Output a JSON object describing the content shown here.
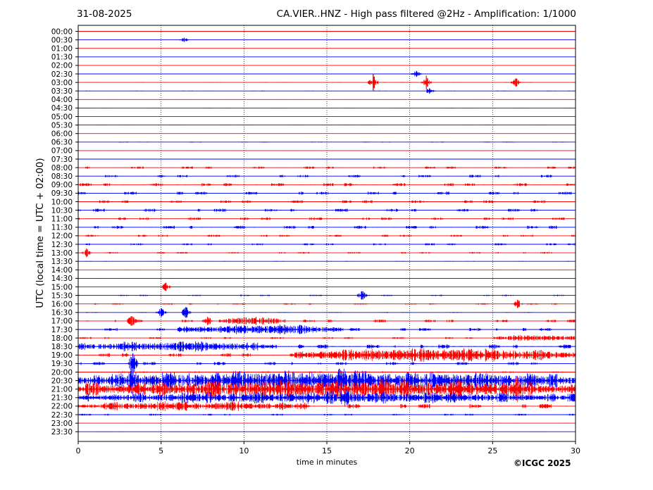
{
  "header": {
    "date": "31-08-2025",
    "title": "CA.VIER..HNZ - High pass filtered @2Hz - Amplification: 1/1000"
  },
  "footer": {
    "copyright": "©ICGC 2025"
  },
  "chart_data": {
    "type": "line",
    "title": "CA.VIER..HNZ - High pass filtered @2Hz - Amplification: 1/1000",
    "xlabel": "time in minutes",
    "ylabel": "UTC (local time = UTC + 02:00)",
    "xlim": [
      0,
      30
    ],
    "x_ticks": [
      0,
      5,
      10,
      15,
      20,
      25,
      30
    ],
    "grid": "vertical dotted lines at 5, 10, 15, 20, 25",
    "trace_colors": [
      "#ff0000",
      "#0000ff"
    ],
    "rows": [
      "00:00",
      "00:30",
      "01:00",
      "01:30",
      "02:00",
      "02:30",
      "03:00",
      "03:30",
      "04:00",
      "04:30",
      "05:00",
      "05:30",
      "06:00",
      "06:30",
      "07:00",
      "07:30",
      "08:00",
      "08:30",
      "09:00",
      "09:30",
      "10:00",
      "10:30",
      "11:00",
      "11:30",
      "12:00",
      "12:30",
      "13:00",
      "13:30",
      "14:00",
      "14:30",
      "15:00",
      "15:30",
      "16:00",
      "16:30",
      "17:00",
      "17:30",
      "18:00",
      "18:30",
      "19:00",
      "19:30",
      "20:00",
      "20:30",
      "21:00",
      "21:30",
      "22:00",
      "22:30",
      "23:00",
      "23:30"
    ],
    "activity": [
      0.03,
      0.04,
      0.03,
      0.04,
      0.03,
      0.08,
      0.1,
      0.08,
      0.06,
      0.07,
      0.06,
      0.08,
      0.03,
      0.1,
      0.08,
      0.07,
      0.3,
      0.35,
      0.4,
      0.4,
      0.38,
      0.4,
      0.35,
      0.4,
      0.28,
      0.28,
      0.22,
      0.08,
      0.05,
      0.05,
      0.1,
      0.2,
      0.2,
      0.1,
      0.35,
      0.4,
      0.25,
      0.55,
      0.5,
      0.4,
      0.2,
      0.95,
      0.95,
      0.65,
      0.55,
      0.25,
      0.08,
      0.06
    ],
    "events": [
      {
        "row": "00:30",
        "minute": 6.4,
        "amplitude": 0.3
      },
      {
        "row": "02:30",
        "minute": 20.4,
        "amplitude": 0.4
      },
      {
        "row": "03:00",
        "minute": 17.8,
        "amplitude": 1.2
      },
      {
        "row": "03:00",
        "minute": 21.0,
        "amplitude": 1.0
      },
      {
        "row": "03:00",
        "minute": 26.4,
        "amplitude": 0.6
      },
      {
        "row": "03:30",
        "minute": 21.2,
        "amplitude": 0.4
      },
      {
        "row": "13:00",
        "minute": 0.5,
        "amplitude": 0.6
      },
      {
        "row": "15:00",
        "minute": 5.3,
        "amplitude": 0.6
      },
      {
        "row": "15:30",
        "minute": 17.1,
        "amplitude": 0.6
      },
      {
        "row": "16:00",
        "minute": 26.5,
        "amplitude": 0.6
      },
      {
        "row": "16:30",
        "minute": 5.0,
        "amplitude": 0.6
      },
      {
        "row": "16:30",
        "minute": 6.5,
        "amplitude": 0.8
      },
      {
        "row": "17:00",
        "minute": 3.2,
        "amplitude": 0.7
      },
      {
        "row": "17:00",
        "minute": 7.8,
        "amplitude": 0.6
      },
      {
        "row": "19:30",
        "minute": 3.3,
        "amplitude": 1.5
      },
      {
        "row": "20:30",
        "minute": 3.3,
        "amplitude": 1.8
      },
      {
        "row": "20:30",
        "minute": 15.9,
        "amplitude": 1.4
      },
      {
        "row": "21:00",
        "minute": 26.4,
        "amplitude": 1.6
      },
      {
        "row": "21:30",
        "minute": 16.1,
        "amplitude": 0.8
      }
    ],
    "bursts": [
      {
        "row": "17:00",
        "from": 8.5,
        "to": 12.5,
        "amplitude": 0.8
      },
      {
        "row": "17:30",
        "from": 6.0,
        "to": 16.0,
        "amplitude": 0.9
      },
      {
        "row": "18:00",
        "from": 25.0,
        "to": 30.0,
        "amplitude": 0.6
      },
      {
        "row": "18:30",
        "from": 0.0,
        "to": 12.0,
        "amplitude": 0.8
      },
      {
        "row": "19:00",
        "from": 13.0,
        "to": 30.0,
        "amplitude": 1.2
      },
      {
        "row": "20:30",
        "from": 0.0,
        "to": 30.0,
        "amplitude": 1.6
      },
      {
        "row": "21:00",
        "from": 0.0,
        "to": 30.0,
        "amplitude": 1.5
      },
      {
        "row": "21:30",
        "from": 0.0,
        "to": 30.0,
        "amplitude": 0.9
      },
      {
        "row": "22:00",
        "from": 0.0,
        "to": 14.0,
        "amplitude": 0.7
      }
    ]
  }
}
